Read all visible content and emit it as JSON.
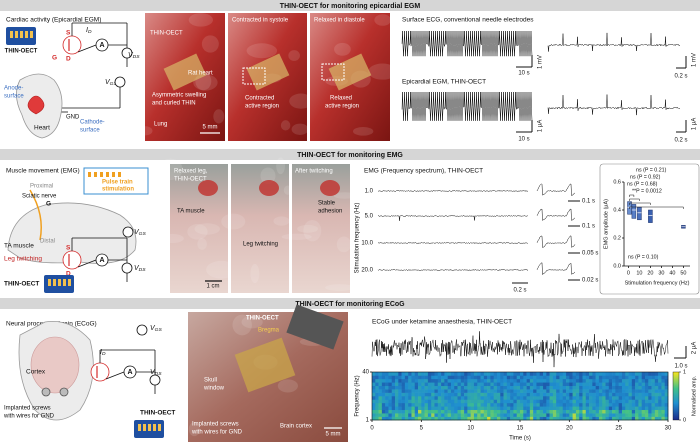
{
  "panel_1": {
    "header": "THIN-OECT for monitoring epicardial EGM",
    "schematic": {
      "title": "Cardiac activity (Epicardial EGM)",
      "device": "THIN-OECT",
      "source": "S",
      "drain": "D",
      "gate": "G",
      "ammeter": "A",
      "id": {
        "main": "I",
        "sub": "D"
      },
      "vds": {
        "main": "V",
        "sub": "DS"
      },
      "vgs": {
        "main": "V",
        "sub": "GS"
      },
      "anode": [
        "Anode-",
        "surface"
      ],
      "gnd": "GND",
      "heart": "Heart",
      "cathode": [
        "Cathode-",
        "surface"
      ]
    },
    "photos": [
      {
        "labels": [
          "THIN-OECT",
          "Rat heart",
          "Asymmetric swelling",
          "and curled THIN",
          "Lung"
        ],
        "scale": "5 mm"
      },
      {
        "labels": [
          "Contracted in systole",
          "Contracted",
          "active region"
        ]
      },
      {
        "labels": [
          "Relaxed in diastole",
          "Relaxed",
          "active region"
        ]
      }
    ],
    "traces": [
      {
        "title": "Surface ECG, conventional needle electrodes",
        "time_scale": "10 s",
        "amp_scale": "1 mV",
        "zoom_time_scale": "0.2 s",
        "zoom_amp_scale": "1 mV"
      },
      {
        "title": "Epicardial EGM, THIN-OECT",
        "time_scale": "10 s",
        "amp_scale": "1 μA",
        "zoom_time_scale": "0.2 s",
        "zoom_amp_scale": "1 μA"
      }
    ]
  },
  "panel_2": {
    "header": "THIN-OECT for monitoring EMG",
    "schematic": {
      "title": "Muscle movement (EMG)",
      "proximal": "Proximal",
      "nerve": "Sciatic nerve",
      "stimulation": [
        "Pulse train",
        "stimulation"
      ],
      "gate": "G",
      "source": "S",
      "drain": "D",
      "ammeter": "A",
      "vgs": {
        "main": "V",
        "sub": "GS"
      },
      "vds": {
        "main": "V",
        "sub": "DS"
      },
      "distal": "Distal",
      "muscle": "TA muscle",
      "twitch": "Leg twitching",
      "device": "THIN-OECT"
    },
    "photos": [
      {
        "labels": [
          "Relaxed leg,",
          "THIN-OECT",
          "TA muscle"
        ],
        "scale": "1 cm"
      },
      {
        "labels": [
          "Leg twitching"
        ]
      },
      {
        "labels": [
          "After twitching",
          "Stable",
          "adhesion"
        ]
      }
    ],
    "emg": {
      "title": "EMG (Frequency spectrum), THIN-OECT",
      "ylabel": "Stimulation frequency (Hz)",
      "rows": [
        "1.0",
        "5.0",
        "10.0",
        "20.0"
      ],
      "zoom_scales": [
        "0.1 s",
        "0.1 s",
        "0.05 s",
        "0.02 s"
      ],
      "time_scale": "0.2 s"
    },
    "chart_data": {
      "type": "box",
      "ylabel": "EMG amplitude (μA)",
      "xlabel": "Stimulation frequency (Hz)",
      "x": [
        1,
        5,
        10,
        20,
        50
      ],
      "median": [
        0.42,
        0.4,
        0.38,
        0.36,
        0.28
      ],
      "q1": [
        0.37,
        0.34,
        0.33,
        0.31,
        0.27
      ],
      "q3": [
        0.46,
        0.44,
        0.42,
        0.4,
        0.29
      ],
      "colors": [
        "#6a8fd0",
        "#5a80c8",
        "#4a70bd",
        "#3a60b0",
        "#1f3f8f"
      ],
      "xlim": [
        -4,
        56
      ],
      "ylim": [
        0,
        0.6
      ],
      "xticks": [
        0,
        10,
        20,
        30,
        40,
        50
      ],
      "yticks": [
        {
          "value": 0,
          "label": "0.0"
        },
        {
          "value": 0.2,
          "label": "0.2"
        },
        {
          "value": 0.4,
          "label": "0.4"
        },
        {
          "value": 0.6,
          "label": "0.6"
        }
      ],
      "annotations": [
        "ns (P = 0.21)",
        "ns (P = 0.92)",
        "ns (P = 0.68)",
        "**P = 0.0012",
        "ns (P = 0.10)"
      ]
    }
  },
  "panel_3": {
    "header": "THIN-OECT for monitoring ECoG",
    "schematic": {
      "title": "Neural process in brain (ECoG)",
      "vgs": {
        "main": "V",
        "sub": "GS"
      },
      "vds": {
        "main": "V",
        "sub": "DS"
      },
      "id": {
        "main": "I",
        "sub": "D"
      },
      "ammeter": "A",
      "cortex": "Cortex",
      "screws": [
        "Implanted screws",
        "with wires for GND"
      ],
      "device": "THIN-OECT"
    },
    "photo": {
      "labels": [
        "THIN-OECT",
        "Bregma",
        "Skull",
        "window",
        "Implanted screws",
        "with wires for GND",
        "Brain cortex"
      ],
      "scale": "5 mm"
    },
    "ecog": {
      "title": "ECoG under ketamine anaesthesia, THIN-OECT",
      "amp_scale": "2 μA",
      "time_scale": "1.0 s",
      "ylabel": "Frequency (Hz)",
      "ylim": [
        1,
        40
      ],
      "yticks": [
        1,
        40
      ],
      "xlim": [
        0,
        30
      ],
      "xticks": [
        0,
        5,
        10,
        15,
        20,
        25,
        30
      ],
      "xlabel": "Time (s)",
      "colorbar_label": "Normalised amp.",
      "colorbar_ticks": [
        0,
        1
      ]
    }
  }
}
